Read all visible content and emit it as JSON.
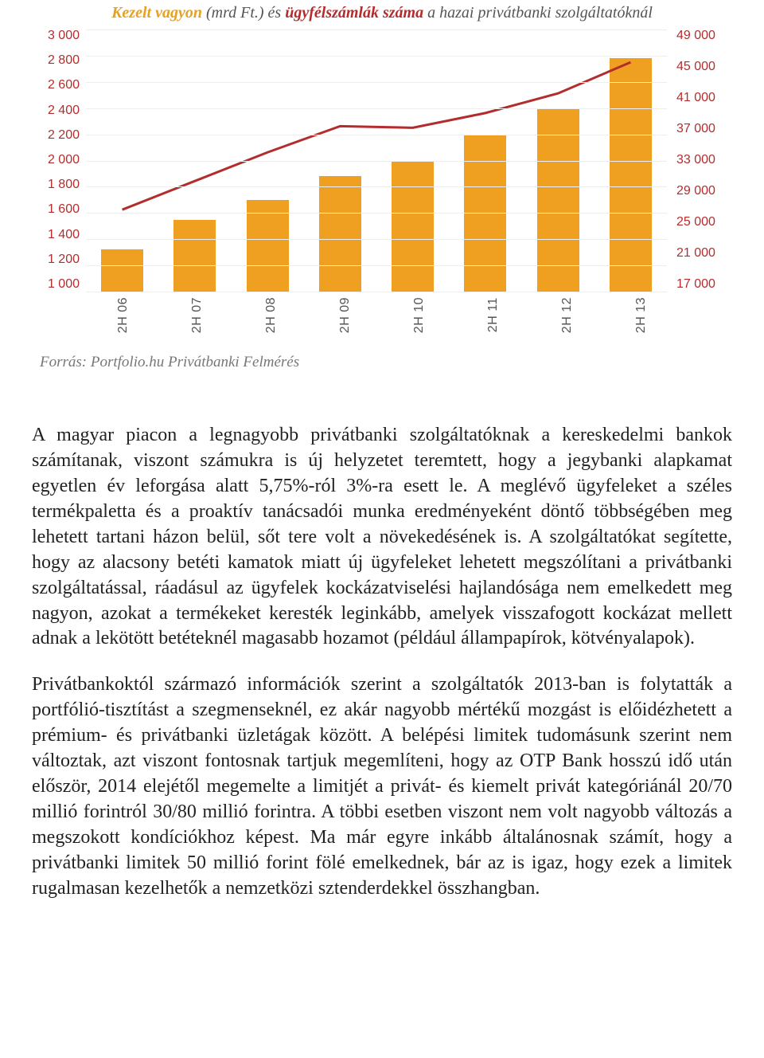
{
  "chart": {
    "title_part1": "Kezelt vagyon",
    "title_part2": " (mrd Ft.) ",
    "title_part3": "és ",
    "title_part4": "ügyfélszámlák száma",
    "title_part5": " a hazai privátbanki szolgáltatóknál",
    "type": "bar+line",
    "left_axis": {
      "min": 1000,
      "max": 3000,
      "ticks": [
        "3 000",
        "2 800",
        "2 600",
        "2 400",
        "2 200",
        "2 000",
        "1 800",
        "1 600",
        "1 400",
        "1 200",
        "1 000"
      ],
      "color": "#b32d2d",
      "fontsize": 16
    },
    "right_axis": {
      "min": 17000,
      "max": 49000,
      "ticks": [
        "49 000",
        "45 000",
        "41 000",
        "37 000",
        "33 000",
        "29 000",
        "25 000",
        "21 000",
        "17 000"
      ],
      "color": "#b32d2d",
      "fontsize": 16
    },
    "categories": [
      "2H 06",
      "2H 07",
      "2H 08",
      "2H 09",
      "2H 10",
      "2H 11",
      "2H 12",
      "2H 13"
    ],
    "bars": {
      "values": [
        1320,
        1550,
        1700,
        1880,
        2000,
        2200,
        2400,
        2780
      ],
      "min": 1000,
      "max": 3000,
      "color": "#f0a020",
      "width": 0.58
    },
    "line": {
      "values": [
        27000,
        30500,
        34000,
        37200,
        37000,
        38800,
        41200,
        45000
      ],
      "min": 17000,
      "max": 49000,
      "color": "#b32d2d",
      "stroke_width": 3
    },
    "grid_color": "#eeeeee",
    "background_color": "#ffffff",
    "source": "Forrás: Portfolio.hu Privátbanki Felmérés"
  },
  "paragraphs": [
    "A magyar piacon a legnagyobb privátbanki szolgáltatóknak a kereskedelmi bankok számítanak, viszont számukra is új helyzetet teremtett, hogy a jegybanki alapkamat egyetlen év leforgása alatt 5,75%-ról 3%-ra esett le. A meglévő ügyfeleket a széles termékpaletta és a proaktív tanácsadói munka eredményeként döntő többségében meg lehetett tartani házon belül, sőt tere volt a növekedésének is. A szolgáltatókat segítette, hogy az alacsony betéti kamatok miatt új ügyfeleket lehetett megszólítani a privátbanki szolgáltatással, ráadásul az ügyfelek kockázatviselési hajlandósága nem emelkedett meg nagyon, azokat a termékeket keresték leginkább, amelyek visszafogott kockázat mellett adnak a lekötött betéteknél magasabb hozamot (például állampapírok, kötvényalapok).",
    "Privátbankoktól származó információk szerint a szolgáltatók 2013-ban is folytatták a portfólió-tisztítást a szegmenseknél, ez akár nagyobb mértékű mozgást is előidézhetett a prémium- és privátbanki üzletágak között. A belépési limitek tudomásunk szerint nem változtak, azt viszont fontosnak tartjuk megemlíteni, hogy az OTP Bank hosszú idő után először, 2014 elejétől megemelte a limitjét a privát- és kiemelt privát kategóriánál 20/70 millió forintról 30/80 millió forintra. A többi esetben viszont nem volt nagyobb változás a megszokott kondíciókhoz képest. Ma már egyre inkább általánosnak számít, hogy a privátbanki limitek 50 millió forint fölé emelkednek, bár az is igaz, hogy ezek a limitek rugalmasan kezelhetők a nemzetközi sztenderdekkel összhangban."
  ]
}
